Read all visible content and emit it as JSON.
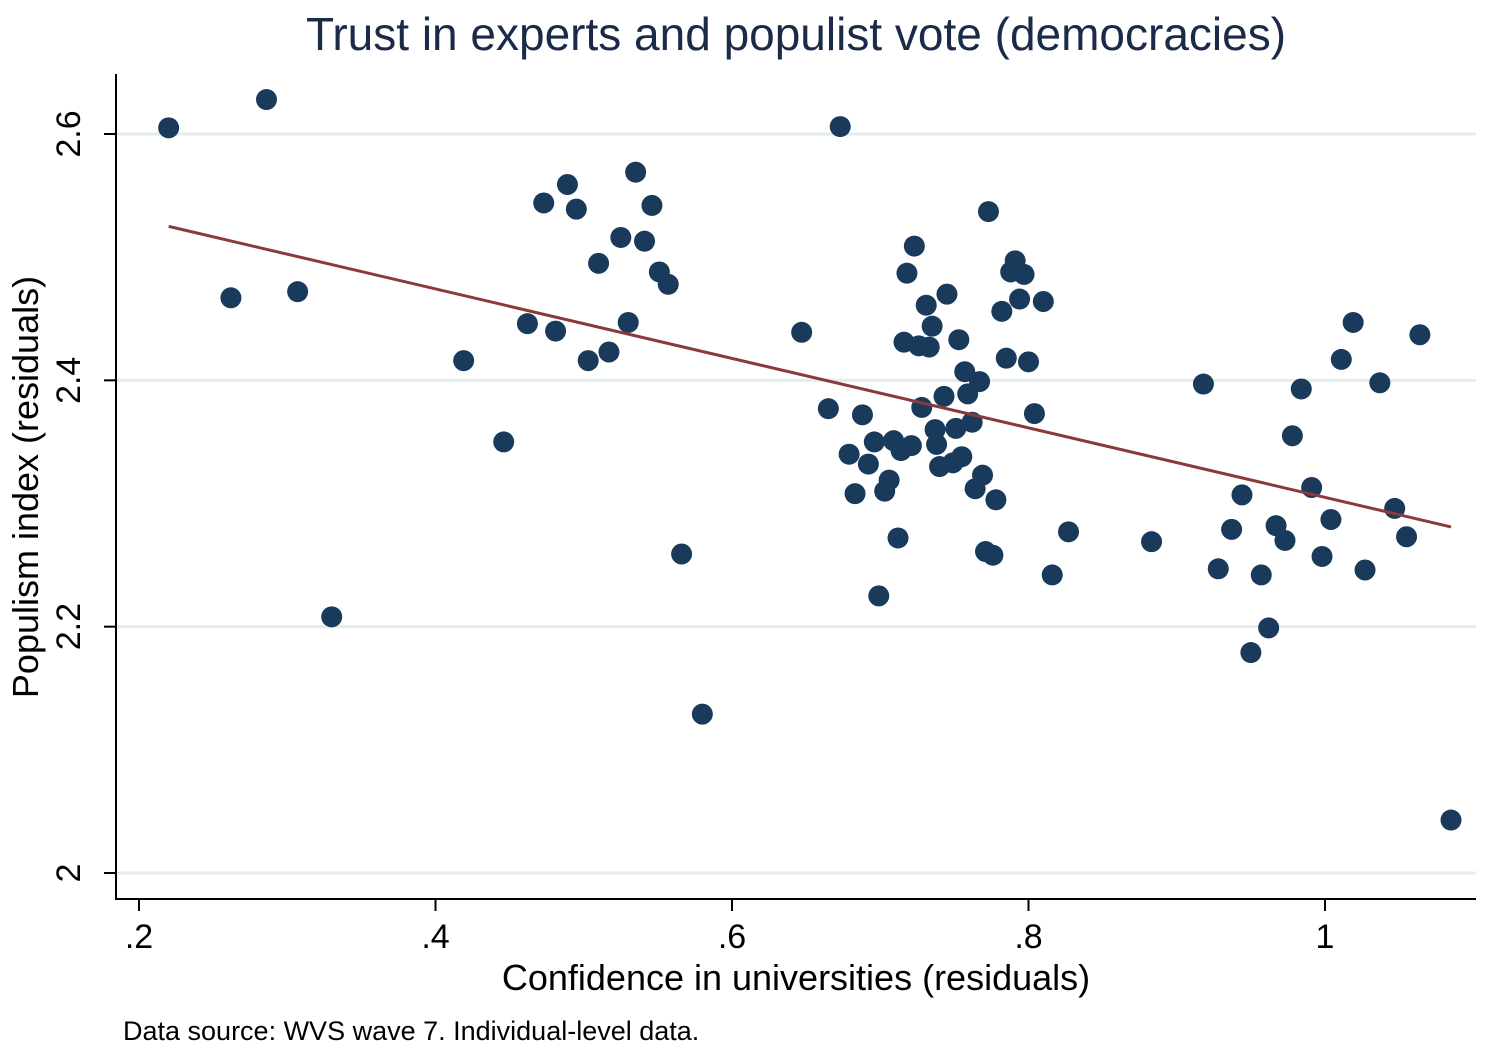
{
  "chart_data": {
    "type": "scatter",
    "title": "Trust in experts and populist vote (democracies)",
    "xlabel": "Confidence in universities (residuals)",
    "ylabel": "Populism index (residuals)",
    "note": "Data source: WVS wave 7. Individual-level data.",
    "xlim": [
      0.18,
      1.1
    ],
    "ylim": [
      1.98,
      2.66
    ],
    "x_ticks": [
      0.2,
      0.4,
      0.6,
      0.8,
      1.0
    ],
    "x_tick_labels": [
      ".2",
      ".4",
      ".6",
      ".8",
      "1"
    ],
    "y_ticks": [
      2.0,
      2.2,
      2.4,
      2.6
    ],
    "y_tick_labels": [
      "2",
      "2.2",
      "2.4",
      "2.6"
    ],
    "grid": "horizontal",
    "colors": {
      "points": "#1a3a5c",
      "fit_line": "#8b3a3a",
      "grid": "#e3ecec",
      "title": "#1a2a48"
    },
    "fit_line": {
      "x": [
        0.22,
        1.085
      ],
      "y": [
        2.525,
        2.281
      ]
    },
    "points": [
      [
        0.22,
        2.605
      ],
      [
        0.262,
        2.467
      ],
      [
        0.286,
        2.628
      ],
      [
        0.307,
        2.472
      ],
      [
        0.33,
        2.208
      ],
      [
        0.419,
        2.416
      ],
      [
        0.446,
        2.35
      ],
      [
        0.462,
        2.446
      ],
      [
        0.473,
        2.544
      ],
      [
        0.481,
        2.44
      ],
      [
        0.489,
        2.559
      ],
      [
        0.495,
        2.539
      ],
      [
        0.503,
        2.416
      ],
      [
        0.51,
        2.495
      ],
      [
        0.517,
        2.423
      ],
      [
        0.525,
        2.516
      ],
      [
        0.53,
        2.447
      ],
      [
        0.535,
        2.569
      ],
      [
        0.541,
        2.513
      ],
      [
        0.546,
        2.542
      ],
      [
        0.551,
        2.488
      ],
      [
        0.557,
        2.478
      ],
      [
        0.566,
        2.259
      ],
      [
        0.58,
        2.129
      ],
      [
        0.647,
        2.439
      ],
      [
        0.665,
        2.377
      ],
      [
        0.673,
        2.606
      ],
      [
        0.679,
        2.34
      ],
      [
        0.683,
        2.308
      ],
      [
        0.688,
        2.372
      ],
      [
        0.692,
        2.332
      ],
      [
        0.696,
        2.35
      ],
      [
        0.699,
        2.225
      ],
      [
        0.703,
        2.31
      ],
      [
        0.706,
        2.319
      ],
      [
        0.709,
        2.351
      ],
      [
        0.712,
        2.272
      ],
      [
        0.714,
        2.343
      ],
      [
        0.716,
        2.431
      ],
      [
        0.718,
        2.487
      ],
      [
        0.721,
        2.347
      ],
      [
        0.723,
        2.509
      ],
      [
        0.726,
        2.428
      ],
      [
        0.728,
        2.378
      ],
      [
        0.731,
        2.461
      ],
      [
        0.733,
        2.427
      ],
      [
        0.735,
        2.444
      ],
      [
        0.737,
        2.36
      ],
      [
        0.738,
        2.348
      ],
      [
        0.74,
        2.33
      ],
      [
        0.743,
        2.387
      ],
      [
        0.745,
        2.47
      ],
      [
        0.749,
        2.333
      ],
      [
        0.751,
        2.361
      ],
      [
        0.753,
        2.433
      ],
      [
        0.755,
        2.338
      ],
      [
        0.757,
        2.407
      ],
      [
        0.759,
        2.389
      ],
      [
        0.762,
        2.366
      ],
      [
        0.764,
        2.312
      ],
      [
        0.767,
        2.399
      ],
      [
        0.769,
        2.323
      ],
      [
        0.771,
        2.261
      ],
      [
        0.773,
        2.537
      ],
      [
        0.776,
        2.258
      ],
      [
        0.778,
        2.303
      ],
      [
        0.782,
        2.456
      ],
      [
        0.785,
        2.418
      ],
      [
        0.788,
        2.488
      ],
      [
        0.791,
        2.497
      ],
      [
        0.794,
        2.466
      ],
      [
        0.797,
        2.486
      ],
      [
        0.8,
        2.415
      ],
      [
        0.804,
        2.373
      ],
      [
        0.81,
        2.464
      ],
      [
        0.816,
        2.242
      ],
      [
        0.827,
        2.277
      ],
      [
        0.883,
        2.269
      ],
      [
        0.918,
        2.397
      ],
      [
        0.928,
        2.247
      ],
      [
        0.937,
        2.279
      ],
      [
        0.944,
        2.307
      ],
      [
        0.95,
        2.179
      ],
      [
        0.957,
        2.242
      ],
      [
        0.962,
        2.199
      ],
      [
        0.967,
        2.282
      ],
      [
        0.973,
        2.27
      ],
      [
        0.978,
        2.355
      ],
      [
        0.984,
        2.393
      ],
      [
        0.991,
        2.313
      ],
      [
        0.998,
        2.257
      ],
      [
        1.004,
        2.287
      ],
      [
        1.011,
        2.417
      ],
      [
        1.019,
        2.447
      ],
      [
        1.027,
        2.246
      ],
      [
        1.037,
        2.398
      ],
      [
        1.047,
        2.296
      ],
      [
        1.055,
        2.273
      ],
      [
        1.064,
        2.437
      ],
      [
        1.085,
        2.043
      ]
    ]
  }
}
